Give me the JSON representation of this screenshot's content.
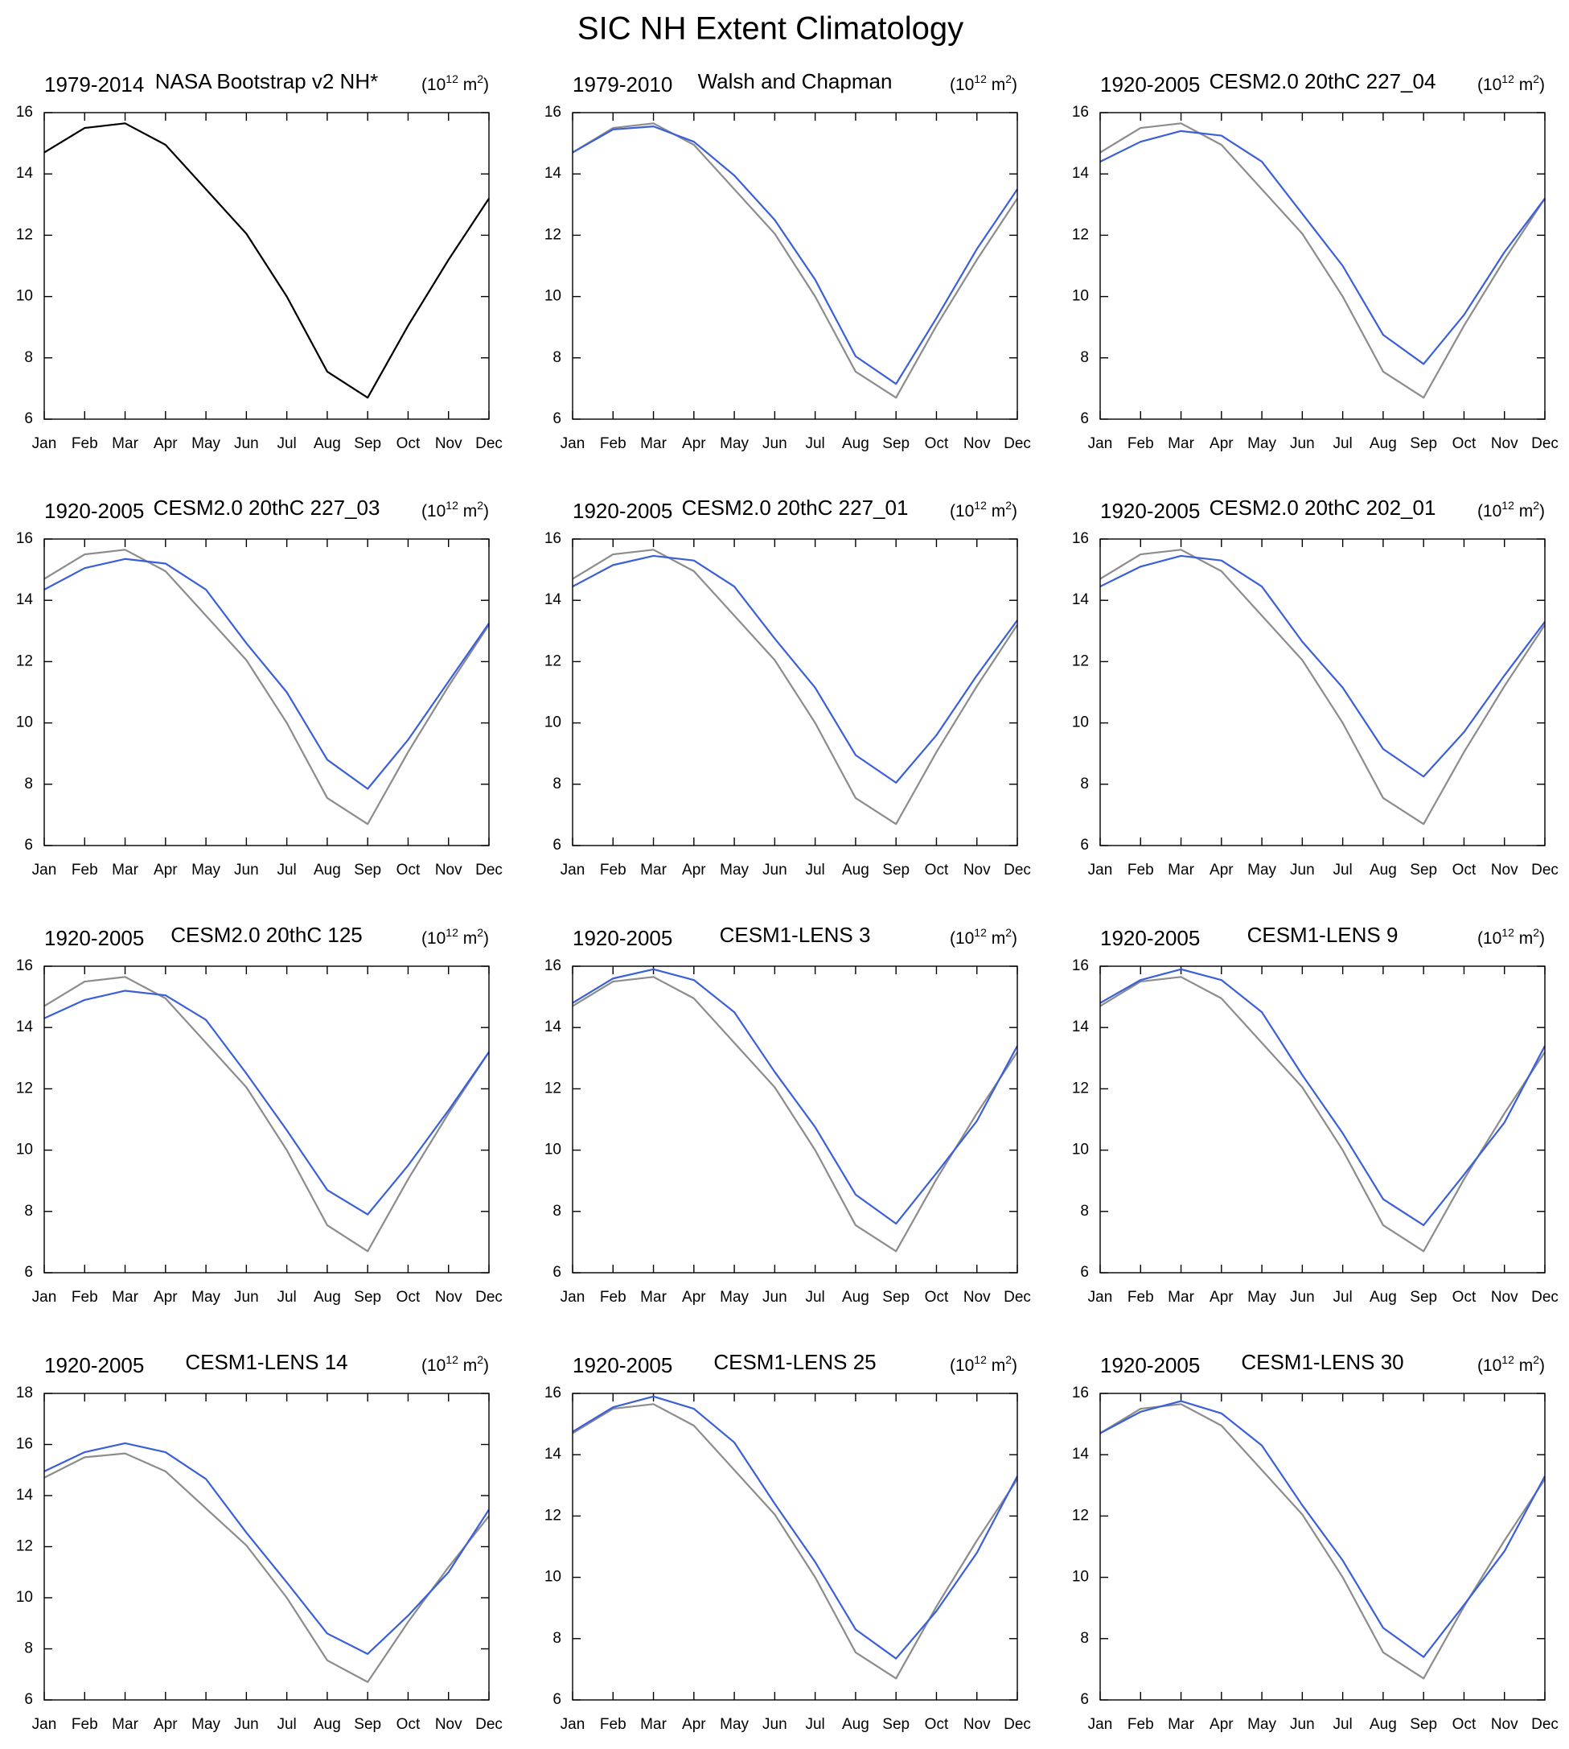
{
  "title": "SIC NH Extent Climatology",
  "chart_data": [
    {
      "type": "line",
      "period": "1979-2014",
      "title": "NASA Bootstrap v2 NH*",
      "units": [
        "(10",
        "12",
        " m",
        "2",
        ")"
      ],
      "categories": [
        "Jan",
        "Feb",
        "Mar",
        "Apr",
        "May",
        "Jun",
        "Jul",
        "Aug",
        "Sep",
        "Oct",
        "Nov",
        "Dec"
      ],
      "ylim": [
        6,
        16
      ],
      "yticks": [
        6,
        8,
        10,
        12,
        14,
        16
      ],
      "series": [
        {
          "color": "#000000",
          "values": [
            14.7,
            15.5,
            15.65,
            14.95,
            13.5,
            12.05,
            10.0,
            7.55,
            6.7,
            9.05,
            11.2,
            13.2
          ]
        }
      ]
    },
    {
      "type": "line",
      "period": "1979-2010",
      "title": "Walsh and Chapman",
      "units": [
        "(10",
        "12",
        " m",
        "2",
        ")"
      ],
      "categories": [
        "Jan",
        "Feb",
        "Mar",
        "Apr",
        "May",
        "Jun",
        "Jul",
        "Aug",
        "Sep",
        "Oct",
        "Nov",
        "Dec"
      ],
      "ylim": [
        6,
        16
      ],
      "yticks": [
        6,
        8,
        10,
        12,
        14,
        16
      ],
      "series": [
        {
          "color": "#8c8c8c",
          "values": [
            14.7,
            15.5,
            15.65,
            14.95,
            13.5,
            12.05,
            10.0,
            7.55,
            6.7,
            9.05,
            11.2,
            13.2
          ]
        },
        {
          "color": "#3a5fd8",
          "values": [
            14.7,
            15.45,
            15.55,
            15.05,
            13.95,
            12.5,
            10.55,
            8.05,
            7.15,
            9.3,
            11.55,
            13.5
          ]
        }
      ]
    },
    {
      "type": "line",
      "period": "1920-2005",
      "title": "CESM2.0 20thC 227_04",
      "units": [
        "(10",
        "12",
        " m",
        "2",
        ")"
      ],
      "categories": [
        "Jan",
        "Feb",
        "Mar",
        "Apr",
        "May",
        "Jun",
        "Jul",
        "Aug",
        "Sep",
        "Oct",
        "Nov",
        "Dec"
      ],
      "ylim": [
        6,
        16
      ],
      "yticks": [
        6,
        8,
        10,
        12,
        14,
        16
      ],
      "series": [
        {
          "color": "#8c8c8c",
          "values": [
            14.7,
            15.5,
            15.65,
            14.95,
            13.5,
            12.05,
            10.0,
            7.55,
            6.7,
            9.05,
            11.2,
            13.2
          ]
        },
        {
          "color": "#3a5fd8",
          "values": [
            14.4,
            15.05,
            15.4,
            15.25,
            14.4,
            12.7,
            11.0,
            8.75,
            7.8,
            9.4,
            11.45,
            13.2
          ]
        }
      ]
    },
    {
      "type": "line",
      "period": "1920-2005",
      "title": "CESM2.0 20thC 227_03",
      "units": [
        "(10",
        "12",
        " m",
        "2",
        ")"
      ],
      "categories": [
        "Jan",
        "Feb",
        "Mar",
        "Apr",
        "May",
        "Jun",
        "Jul",
        "Aug",
        "Sep",
        "Oct",
        "Nov",
        "Dec"
      ],
      "ylim": [
        6,
        16
      ],
      "yticks": [
        6,
        8,
        10,
        12,
        14,
        16
      ],
      "series": [
        {
          "color": "#8c8c8c",
          "values": [
            14.7,
            15.5,
            15.65,
            14.95,
            13.5,
            12.05,
            10.0,
            7.55,
            6.7,
            9.05,
            11.2,
            13.2
          ]
        },
        {
          "color": "#3a5fd8",
          "values": [
            14.35,
            15.05,
            15.35,
            15.2,
            14.35,
            12.6,
            11.0,
            8.8,
            7.85,
            9.45,
            11.35,
            13.25
          ]
        }
      ]
    },
    {
      "type": "line",
      "period": "1920-2005",
      "title": "CESM2.0 20thC 227_01",
      "units": [
        "(10",
        "12",
        " m",
        "2",
        ")"
      ],
      "categories": [
        "Jan",
        "Feb",
        "Mar",
        "Apr",
        "May",
        "Jun",
        "Jul",
        "Aug",
        "Sep",
        "Oct",
        "Nov",
        "Dec"
      ],
      "ylim": [
        6,
        16
      ],
      "yticks": [
        6,
        8,
        10,
        12,
        14,
        16
      ],
      "series": [
        {
          "color": "#8c8c8c",
          "values": [
            14.7,
            15.5,
            15.65,
            14.95,
            13.5,
            12.05,
            10.0,
            7.55,
            6.7,
            9.05,
            11.2,
            13.2
          ]
        },
        {
          "color": "#3a5fd8",
          "values": [
            14.45,
            15.15,
            15.45,
            15.3,
            14.45,
            12.75,
            11.15,
            8.95,
            8.05,
            9.6,
            11.55,
            13.35
          ]
        }
      ]
    },
    {
      "type": "line",
      "period": "1920-2005",
      "title": "CESM2.0 20thC 202_01",
      "units": [
        "(10",
        "12",
        " m",
        "2",
        ")"
      ],
      "categories": [
        "Jan",
        "Feb",
        "Mar",
        "Apr",
        "May",
        "Jun",
        "Jul",
        "Aug",
        "Sep",
        "Oct",
        "Nov",
        "Dec"
      ],
      "ylim": [
        6,
        16
      ],
      "yticks": [
        6,
        8,
        10,
        12,
        14,
        16
      ],
      "series": [
        {
          "color": "#8c8c8c",
          "values": [
            14.7,
            15.5,
            15.65,
            14.95,
            13.5,
            12.05,
            10.0,
            7.55,
            6.7,
            9.05,
            11.2,
            13.2
          ]
        },
        {
          "color": "#3a5fd8",
          "values": [
            14.45,
            15.1,
            15.45,
            15.3,
            14.45,
            12.65,
            11.15,
            9.15,
            8.25,
            9.7,
            11.55,
            13.3
          ]
        }
      ]
    },
    {
      "type": "line",
      "period": "1920-2005",
      "title": "CESM2.0 20thC 125",
      "units": [
        "(10",
        "12",
        " m",
        "2",
        ")"
      ],
      "categories": [
        "Jan",
        "Feb",
        "Mar",
        "Apr",
        "May",
        "Jun",
        "Jul",
        "Aug",
        "Sep",
        "Oct",
        "Nov",
        "Dec"
      ],
      "ylim": [
        6,
        16
      ],
      "yticks": [
        6,
        8,
        10,
        12,
        14,
        16
      ],
      "series": [
        {
          "color": "#8c8c8c",
          "values": [
            14.7,
            15.5,
            15.65,
            14.95,
            13.5,
            12.05,
            10.0,
            7.55,
            6.7,
            9.05,
            11.2,
            13.2
          ]
        },
        {
          "color": "#3a5fd8",
          "values": [
            14.3,
            14.9,
            15.2,
            15.05,
            14.25,
            12.5,
            10.65,
            8.7,
            7.9,
            9.5,
            11.3,
            13.2
          ]
        }
      ]
    },
    {
      "type": "line",
      "period": "1920-2005",
      "title": "CESM1-LENS 3",
      "units": [
        "(10",
        "12",
        " m",
        "2",
        ")"
      ],
      "categories": [
        "Jan",
        "Feb",
        "Mar",
        "Apr",
        "May",
        "Jun",
        "Jul",
        "Aug",
        "Sep",
        "Oct",
        "Nov",
        "Dec"
      ],
      "ylim": [
        6,
        16
      ],
      "yticks": [
        6,
        8,
        10,
        12,
        14,
        16
      ],
      "series": [
        {
          "color": "#8c8c8c",
          "values": [
            14.7,
            15.5,
            15.65,
            14.95,
            13.5,
            12.05,
            10.0,
            7.55,
            6.7,
            9.05,
            11.2,
            13.2
          ]
        },
        {
          "color": "#3a5fd8",
          "values": [
            14.8,
            15.6,
            15.9,
            15.55,
            14.5,
            12.55,
            10.75,
            8.55,
            7.6,
            9.25,
            10.95,
            13.4
          ]
        }
      ]
    },
    {
      "type": "line",
      "period": "1920-2005",
      "title": "CESM1-LENS 9",
      "units": [
        "(10",
        "12",
        " m",
        "2",
        ")"
      ],
      "categories": [
        "Jan",
        "Feb",
        "Mar",
        "Apr",
        "May",
        "Jun",
        "Jul",
        "Aug",
        "Sep",
        "Oct",
        "Nov",
        "Dec"
      ],
      "ylim": [
        6,
        16
      ],
      "yticks": [
        6,
        8,
        10,
        12,
        14,
        16
      ],
      "series": [
        {
          "color": "#8c8c8c",
          "values": [
            14.7,
            15.5,
            15.65,
            14.95,
            13.5,
            12.05,
            10.0,
            7.55,
            6.7,
            9.05,
            11.2,
            13.2
          ]
        },
        {
          "color": "#3a5fd8",
          "values": [
            14.8,
            15.55,
            15.9,
            15.55,
            14.5,
            12.45,
            10.55,
            8.4,
            7.55,
            9.2,
            10.9,
            13.4
          ]
        }
      ]
    },
    {
      "type": "line",
      "period": "1920-2005",
      "title": "CESM1-LENS 14",
      "units": [
        "(10",
        "12",
        " m",
        "2",
        ")"
      ],
      "categories": [
        "Jan",
        "Feb",
        "Mar",
        "Apr",
        "May",
        "Jun",
        "Jul",
        "Aug",
        "Sep",
        "Oct",
        "Nov",
        "Dec"
      ],
      "ylim": [
        6,
        18
      ],
      "yticks": [
        6,
        8,
        10,
        12,
        14,
        16,
        18
      ],
      "series": [
        {
          "color": "#8c8c8c",
          "values": [
            14.7,
            15.5,
            15.65,
            14.95,
            13.5,
            12.05,
            10.0,
            7.55,
            6.7,
            9.05,
            11.2,
            13.2
          ]
        },
        {
          "color": "#3a5fd8",
          "values": [
            14.95,
            15.7,
            16.05,
            15.7,
            14.65,
            12.55,
            10.6,
            8.6,
            7.8,
            9.3,
            11.0,
            13.45
          ]
        }
      ]
    },
    {
      "type": "line",
      "period": "1920-2005",
      "title": "CESM1-LENS 25",
      "units": [
        "(10",
        "12",
        " m",
        "2",
        ")"
      ],
      "categories": [
        "Jan",
        "Feb",
        "Mar",
        "Apr",
        "May",
        "Jun",
        "Jul",
        "Aug",
        "Sep",
        "Oct",
        "Nov",
        "Dec"
      ],
      "ylim": [
        6,
        16
      ],
      "yticks": [
        6,
        8,
        10,
        12,
        14,
        16
      ],
      "series": [
        {
          "color": "#8c8c8c",
          "values": [
            14.7,
            15.5,
            15.65,
            14.95,
            13.5,
            12.05,
            10.0,
            7.55,
            6.7,
            9.05,
            11.2,
            13.2
          ]
        },
        {
          "color": "#3a5fd8",
          "values": [
            14.75,
            15.55,
            15.9,
            15.5,
            14.4,
            12.4,
            10.5,
            8.3,
            7.35,
            8.9,
            10.8,
            13.3
          ]
        }
      ]
    },
    {
      "type": "line",
      "period": "1920-2005",
      "title": "CESM1-LENS 30",
      "units": [
        "(10",
        "12",
        " m",
        "2",
        ")"
      ],
      "categories": [
        "Jan",
        "Feb",
        "Mar",
        "Apr",
        "May",
        "Jun",
        "Jul",
        "Aug",
        "Sep",
        "Oct",
        "Nov",
        "Dec"
      ],
      "ylim": [
        6,
        16
      ],
      "yticks": [
        6,
        8,
        10,
        12,
        14,
        16
      ],
      "series": [
        {
          "color": "#8c8c8c",
          "values": [
            14.7,
            15.5,
            15.65,
            14.95,
            13.5,
            12.05,
            10.0,
            7.55,
            6.7,
            9.05,
            11.2,
            13.2
          ]
        },
        {
          "color": "#3a5fd8",
          "values": [
            14.7,
            15.4,
            15.75,
            15.35,
            14.3,
            12.35,
            10.55,
            8.35,
            7.4,
            9.1,
            10.85,
            13.3
          ]
        }
      ]
    }
  ]
}
